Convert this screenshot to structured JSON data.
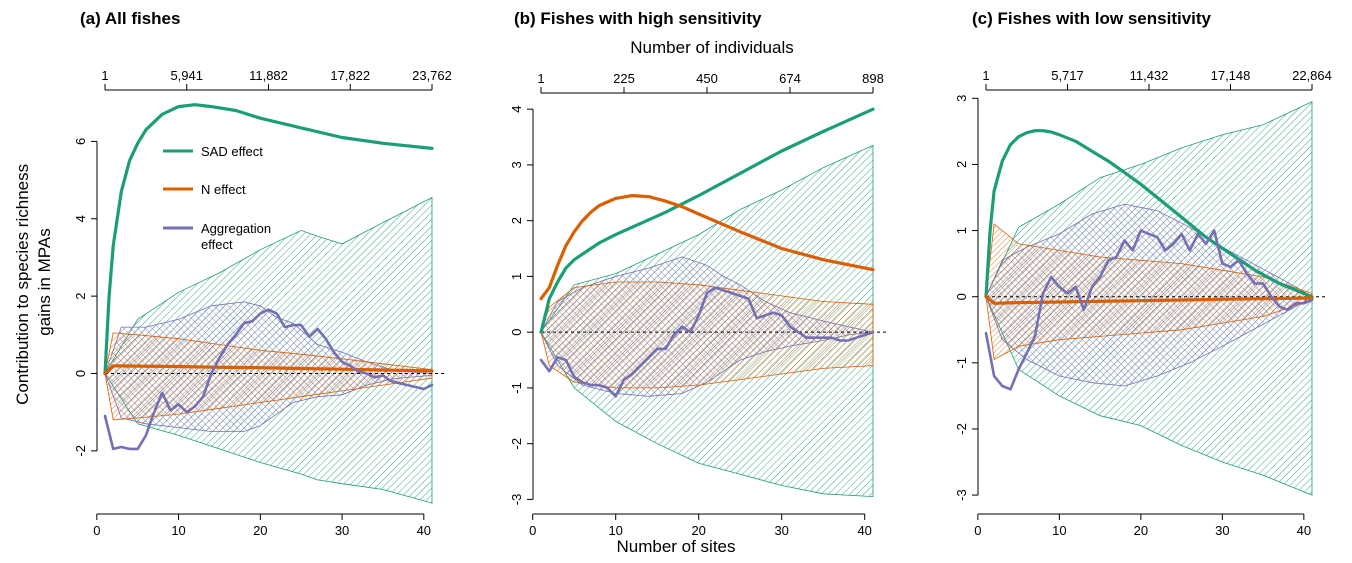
{
  "figure": {
    "ylabel_line1": "Contribution to species richness",
    "ylabel_line2": "gains in MPAs",
    "xlabel": "Number of sites",
    "top_axis_label": "Number of individuals"
  },
  "legend": {
    "items": [
      {
        "label": "SAD effect",
        "color": "#1b9e77"
      },
      {
        "label": "N effect",
        "color": "#d95f02"
      },
      {
        "label": "Aggregation",
        "label2": "effect",
        "color": "#7570b3"
      }
    ]
  },
  "chart_data": [
    {
      "type": "line",
      "title": "(a) All fishes",
      "xlim": [
        1,
        41
      ],
      "ylim": [
        -3.4,
        7.2
      ],
      "xticks": [
        0,
        10,
        20,
        30,
        40
      ],
      "yticks": [
        -2,
        0,
        2,
        4,
        6
      ],
      "top_ticks": [
        "1",
        "5,941",
        "11,882",
        "17,822",
        "23,762"
      ],
      "series": [
        {
          "name": "SAD effect",
          "color": "#1b9e77",
          "x": [
            1,
            1.5,
            2,
            3,
            4,
            5,
            6,
            8,
            10,
            12,
            14,
            17,
            20,
            25,
            30,
            35,
            41
          ],
          "y": [
            0,
            2.0,
            3.3,
            4.7,
            5.5,
            5.95,
            6.3,
            6.7,
            6.9,
            6.95,
            6.9,
            6.8,
            6.6,
            6.35,
            6.1,
            5.95,
            5.82
          ]
        },
        {
          "name": "N effect",
          "color": "#d95f02",
          "x": [
            1,
            2,
            5,
            10,
            15,
            20,
            25,
            30,
            35,
            41
          ],
          "y": [
            0,
            0.2,
            0.19,
            0.18,
            0.16,
            0.15,
            0.13,
            0.11,
            0.09,
            0.07
          ]
        },
        {
          "name": "Aggregation effect",
          "color": "#7570b3",
          "x": [
            1,
            2,
            3,
            4,
            5,
            6,
            7,
            8,
            9,
            10,
            11,
            12,
            13,
            14,
            15,
            16,
            17,
            18,
            19,
            20,
            21,
            22,
            23,
            24,
            25,
            26,
            27,
            28,
            29,
            30,
            31,
            32,
            33,
            34,
            35,
            36,
            37,
            38,
            39,
            40,
            41
          ],
          "y": [
            -1.1,
            -1.95,
            -1.9,
            -1.95,
            -1.95,
            -1.6,
            -1.0,
            -0.5,
            -0.95,
            -0.8,
            -1.0,
            -0.85,
            -0.6,
            0.0,
            0.4,
            0.75,
            1.0,
            1.3,
            1.35,
            1.55,
            1.65,
            1.55,
            1.2,
            1.25,
            1.25,
            0.95,
            1.15,
            0.9,
            0.55,
            0.3,
            0.2,
            0.05,
            0.0,
            -0.1,
            -0.05,
            -0.2,
            -0.25,
            -0.3,
            -0.35,
            -0.4,
            -0.3
          ]
        }
      ],
      "bands": [
        {
          "name": "SAD effect",
          "color": "#1b9e77",
          "pattern": "diag",
          "x": [
            1,
            5,
            10,
            15,
            20,
            25,
            27,
            30,
            35,
            41
          ],
          "upper": [
            0.0,
            1.4,
            2.1,
            2.6,
            3.2,
            3.7,
            3.55,
            3.35,
            3.9,
            4.55
          ],
          "lower": [
            0.0,
            -1.3,
            -1.6,
            -1.95,
            -2.3,
            -2.6,
            -2.75,
            -2.85,
            -3.0,
            -3.35
          ]
        },
        {
          "name": "Aggregation effect",
          "color": "#7570b3",
          "pattern": "cross",
          "x": [
            1,
            3,
            6,
            10,
            14,
            18,
            20,
            22,
            24,
            27,
            30,
            33,
            36,
            38,
            41
          ],
          "upper": [
            0.0,
            1.2,
            1.2,
            1.4,
            1.75,
            1.85,
            1.75,
            1.45,
            1.3,
            0.75,
            0.55,
            0.3,
            0.1,
            0.05,
            0.0
          ],
          "lower": [
            0.0,
            -1.15,
            -1.3,
            -1.4,
            -1.5,
            -1.5,
            -1.35,
            -1.05,
            -0.75,
            -0.6,
            -0.55,
            -0.3,
            -0.15,
            -0.1,
            -0.05
          ]
        },
        {
          "name": "N effect",
          "color": "#d95f02",
          "pattern": "diag2",
          "x": [
            1,
            2,
            5,
            10,
            15,
            20,
            25,
            30,
            35,
            41
          ],
          "upper": [
            0.0,
            1.05,
            1.0,
            0.9,
            0.75,
            0.6,
            0.5,
            0.38,
            0.25,
            0.1
          ],
          "lower": [
            0.0,
            -1.2,
            -1.15,
            -1.05,
            -0.9,
            -0.75,
            -0.6,
            -0.45,
            -0.3,
            -0.12
          ]
        }
      ]
    },
    {
      "type": "line",
      "title": "(b) Fishes with high sensitivity",
      "xlim": [
        1,
        41
      ],
      "ylim": [
        -3.1,
        4.2
      ],
      "xticks": [
        0,
        10,
        20,
        30,
        40
      ],
      "yticks": [
        -3,
        -2,
        -1,
        0,
        1,
        2,
        3,
        4
      ],
      "top_ticks": [
        "1",
        "225",
        "450",
        "674",
        "898"
      ],
      "series": [
        {
          "name": "SAD effect",
          "color": "#1b9e77",
          "x": [
            1,
            2,
            3,
            4,
            5,
            6,
            8,
            10,
            13,
            16,
            20,
            25,
            30,
            35,
            41
          ],
          "y": [
            0,
            0.6,
            0.9,
            1.15,
            1.3,
            1.4,
            1.6,
            1.75,
            1.95,
            2.15,
            2.45,
            2.85,
            3.25,
            3.6,
            4.0
          ]
        },
        {
          "name": "N effect",
          "color": "#d95f02",
          "x": [
            1,
            2,
            3,
            4,
            5,
            6,
            7,
            8,
            10,
            12,
            14,
            16,
            18,
            20,
            25,
            30,
            35,
            41
          ],
          "y": [
            0.6,
            0.8,
            1.2,
            1.55,
            1.8,
            2.0,
            2.15,
            2.27,
            2.4,
            2.45,
            2.43,
            2.35,
            2.25,
            2.12,
            1.8,
            1.5,
            1.3,
            1.12
          ]
        },
        {
          "name": "Aggregation effect",
          "color": "#7570b3",
          "x": [
            1,
            2,
            3,
            4,
            5,
            6,
            7,
            8,
            9,
            10,
            11,
            12,
            13,
            14,
            15,
            16,
            17,
            18,
            19,
            20,
            21,
            22,
            23,
            24,
            25,
            26,
            27,
            28,
            29,
            30,
            31,
            32,
            33,
            34,
            35,
            36,
            37,
            38,
            39,
            40,
            41
          ],
          "y": [
            -0.5,
            -0.7,
            -0.45,
            -0.5,
            -0.8,
            -0.9,
            -0.95,
            -0.95,
            -1.0,
            -1.15,
            -0.85,
            -0.75,
            -0.6,
            -0.45,
            -0.3,
            -0.3,
            -0.05,
            0.1,
            0.0,
            0.3,
            0.7,
            0.8,
            0.75,
            0.7,
            0.65,
            0.6,
            0.25,
            0.3,
            0.35,
            0.3,
            0.1,
            0.0,
            -0.1,
            -0.1,
            -0.1,
            -0.1,
            -0.15,
            -0.15,
            -0.1,
            -0.05,
            0.0
          ]
        }
      ],
      "bands": [
        {
          "name": "SAD effect",
          "color": "#1b9e77",
          "pattern": "diag",
          "x": [
            1,
            5,
            10,
            15,
            20,
            25,
            30,
            35,
            41
          ],
          "upper": [
            0.0,
            0.85,
            1.05,
            1.4,
            1.75,
            2.2,
            2.55,
            2.95,
            3.35
          ],
          "lower": [
            0.0,
            -1.0,
            -1.6,
            -2.0,
            -2.35,
            -2.55,
            -2.75,
            -2.9,
            -2.95
          ]
        },
        {
          "name": "Aggregation effect",
          "color": "#7570b3",
          "pattern": "cross",
          "x": [
            1,
            3,
            6,
            10,
            14,
            18,
            21,
            23,
            25,
            28,
            31,
            35,
            38,
            41
          ],
          "upper": [
            0.0,
            0.55,
            0.8,
            1.0,
            1.15,
            1.35,
            1.2,
            1.0,
            0.85,
            0.55,
            0.35,
            0.2,
            0.1,
            0.0
          ],
          "lower": [
            0.0,
            -0.6,
            -0.95,
            -1.1,
            -1.15,
            -1.1,
            -0.9,
            -0.7,
            -0.5,
            -0.35,
            -0.25,
            -0.15,
            -0.05,
            0.0
          ]
        },
        {
          "name": "N effect",
          "color": "#d95f02",
          "pattern": "diag2",
          "x": [
            1,
            2,
            5,
            10,
            15,
            20,
            25,
            30,
            35,
            41
          ],
          "upper": [
            0.0,
            0.45,
            0.8,
            0.9,
            0.9,
            0.85,
            0.75,
            0.65,
            0.55,
            0.5
          ],
          "lower": [
            0.0,
            -0.6,
            -0.9,
            -1.0,
            -1.0,
            -0.95,
            -0.85,
            -0.75,
            -0.65,
            -0.6
          ]
        }
      ]
    },
    {
      "type": "line",
      "title": "(c) Fishes with low sensitivity",
      "xlim": [
        1,
        41
      ],
      "ylim": [
        -3.15,
        3.05
      ],
      "xticks": [
        0,
        10,
        20,
        30,
        40
      ],
      "yticks": [
        -3,
        -2,
        -1,
        0,
        1,
        2,
        3
      ],
      "top_ticks": [
        "1",
        "5,717",
        "11,432",
        "17,148",
        "22,864"
      ],
      "series": [
        {
          "name": "SAD effect",
          "color": "#1b9e77",
          "x": [
            1,
            1.5,
            2,
            3,
            4,
            5,
            6,
            7,
            8,
            9,
            10,
            12,
            14,
            16,
            18,
            20,
            22,
            25,
            28,
            31,
            34,
            37,
            41
          ],
          "y": [
            0,
            1.0,
            1.6,
            2.05,
            2.3,
            2.42,
            2.48,
            2.51,
            2.51,
            2.49,
            2.45,
            2.35,
            2.2,
            2.05,
            1.88,
            1.7,
            1.5,
            1.2,
            0.9,
            0.65,
            0.4,
            0.2,
            0.0
          ]
        },
        {
          "name": "N effect",
          "color": "#d95f02",
          "x": [
            1,
            2,
            5,
            10,
            15,
            20,
            25,
            30,
            35,
            41
          ],
          "y": [
            0,
            -0.1,
            -0.09,
            -0.08,
            -0.07,
            -0.06,
            -0.05,
            -0.04,
            -0.03,
            -0.02
          ]
        },
        {
          "name": "Aggregation effect",
          "color": "#7570b3",
          "x": [
            1,
            2,
            3,
            4,
            5,
            6,
            7,
            8,
            9,
            10,
            11,
            12,
            13,
            14,
            15,
            16,
            17,
            18,
            19,
            20,
            21,
            22,
            23,
            24,
            25,
            26,
            27,
            28,
            29,
            30,
            31,
            32,
            33,
            34,
            35,
            36,
            37,
            38,
            39,
            40,
            41
          ],
          "y": [
            -0.55,
            -1.2,
            -1.35,
            -1.4,
            -1.1,
            -0.85,
            -0.6,
            0.05,
            0.3,
            0.15,
            0.05,
            0.15,
            -0.2,
            0.15,
            0.3,
            0.55,
            0.6,
            0.85,
            0.7,
            1.0,
            0.95,
            0.9,
            0.7,
            0.8,
            0.95,
            0.7,
            0.95,
            0.8,
            1.0,
            0.5,
            0.45,
            0.55,
            0.35,
            0.2,
            0.2,
            0.0,
            -0.15,
            -0.2,
            -0.1,
            -0.1,
            -0.05
          ]
        }
      ],
      "bands": [
        {
          "name": "SAD effect",
          "color": "#1b9e77",
          "pattern": "diag",
          "x": [
            1,
            5,
            10,
            15,
            20,
            25,
            30,
            35,
            41
          ],
          "upper": [
            0.0,
            1.05,
            1.4,
            1.8,
            2.0,
            2.25,
            2.45,
            2.6,
            2.95
          ],
          "lower": [
            0.0,
            -1.1,
            -1.5,
            -1.8,
            -1.95,
            -2.25,
            -2.5,
            -2.7,
            -3.0
          ]
        },
        {
          "name": "Aggregation effect",
          "color": "#7570b3",
          "pattern": "cross",
          "x": [
            1,
            3,
            6,
            10,
            14,
            18,
            22,
            26,
            30,
            33,
            36,
            39,
            41
          ],
          "upper": [
            0.0,
            0.55,
            0.75,
            0.95,
            1.25,
            1.4,
            1.3,
            1.05,
            0.75,
            0.55,
            0.35,
            0.15,
            0.0
          ],
          "lower": [
            0.0,
            -0.65,
            -0.95,
            -1.2,
            -1.3,
            -1.35,
            -1.2,
            -1.0,
            -0.75,
            -0.55,
            -0.35,
            -0.15,
            0.0
          ]
        },
        {
          "name": "N effect",
          "color": "#d95f02",
          "pattern": "diag2",
          "x": [
            1,
            2,
            5,
            10,
            15,
            20,
            25,
            30,
            35,
            41
          ],
          "upper": [
            0.0,
            1.1,
            0.8,
            0.7,
            0.6,
            0.55,
            0.5,
            0.4,
            0.3,
            0.05
          ],
          "lower": [
            0.0,
            -0.95,
            -0.75,
            -0.65,
            -0.6,
            -0.55,
            -0.5,
            -0.4,
            -0.3,
            -0.05
          ]
        }
      ]
    }
  ]
}
